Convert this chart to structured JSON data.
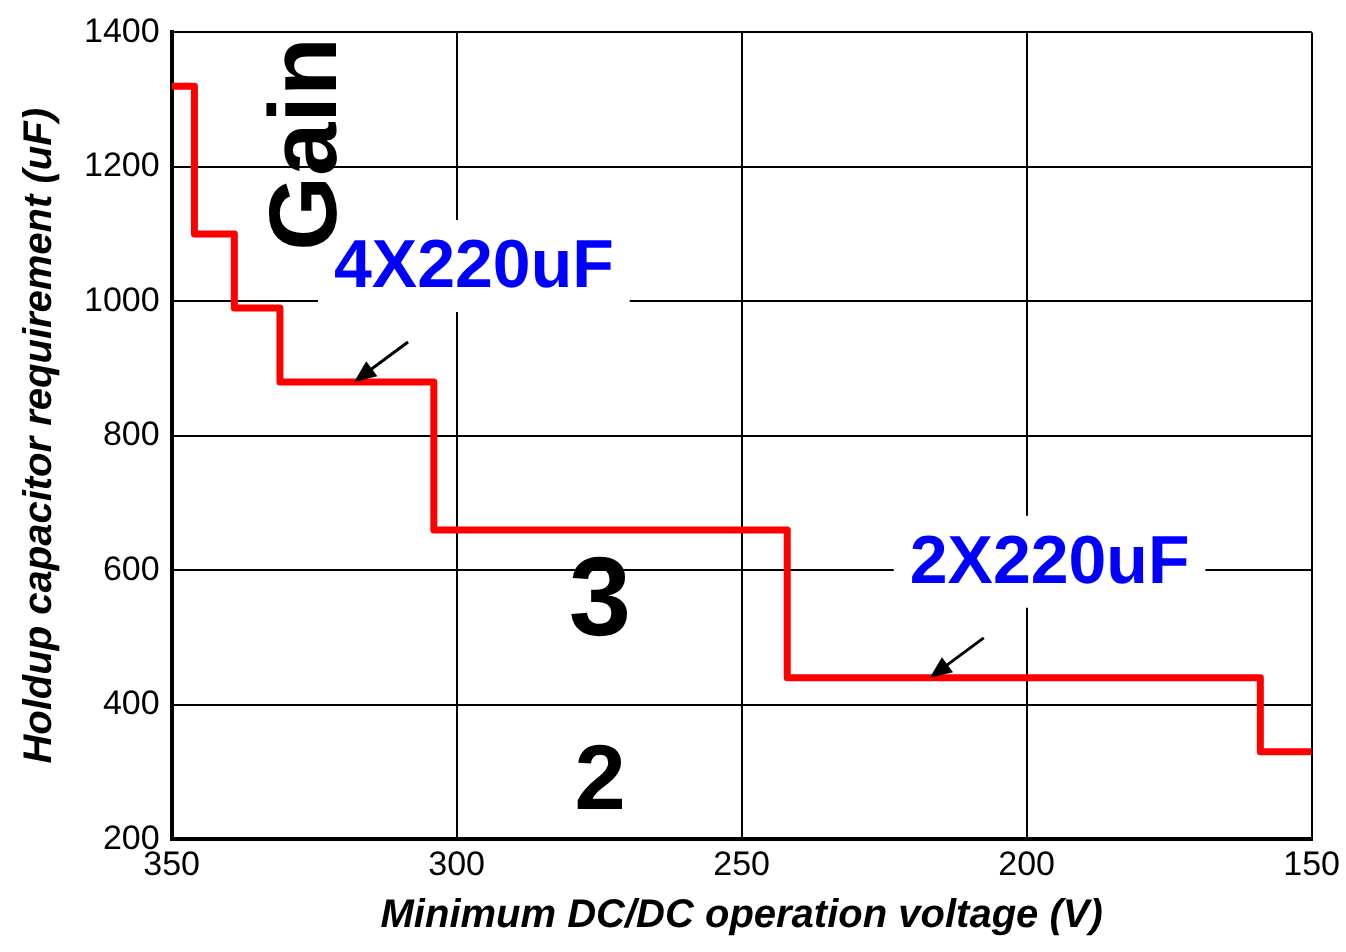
{
  "chart_data": {
    "type": "step",
    "xlabel": "Minimum DC/DC operation voltage (V)",
    "ylabel": "Holdup capacitor requirement (uF)",
    "x": [
      350,
      346,
      339,
      331,
      304,
      242,
      159,
      150
    ],
    "series": [
      {
        "color": "#ff0000",
        "values": [
          1320,
          1100,
          990,
          880,
          660,
          440,
          330,
          330
        ]
      }
    ],
    "xlim": [
      350,
      150
    ],
    "xticks": [
      350,
      300,
      250,
      200,
      150
    ],
    "ylim": [
      200,
      1400
    ],
    "yticks": [
      200,
      400,
      600,
      800,
      1000,
      1200,
      1400
    ],
    "grid": true,
    "legend": false,
    "marker": "none",
    "line_style": "solid",
    "annotations": [
      {
        "text": "4X220uF",
        "x": 318,
        "y": 880
      },
      {
        "text": "2X220uF",
        "x": 217,
        "y": 440
      },
      "Gain",
      "3",
      "2"
    ]
  }
}
